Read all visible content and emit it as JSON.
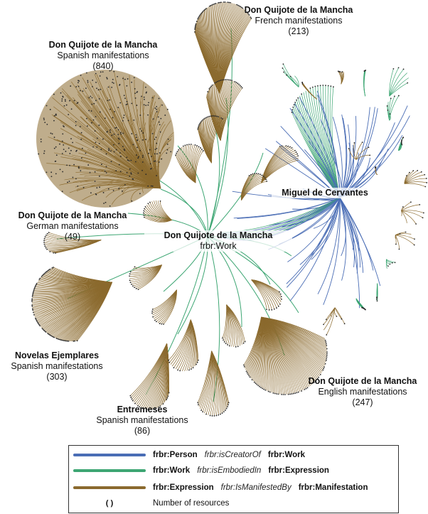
{
  "colors": {
    "creator": "#4a6db5",
    "embodied": "#3da673",
    "manifested": "#8b6a2e",
    "node": "#2a2a2a"
  },
  "clusters": {
    "spanish_quijote": {
      "title": "Don Quijote de la Mancha",
      "subtitle": "Spanish manifestations",
      "count": "(840)"
    },
    "french_quijote": {
      "title": "Don Quijote de la Mancha",
      "subtitle": "French manifestations",
      "count": "(213)"
    },
    "german_quijote": {
      "title": "Don Quijote de la Mancha",
      "subtitle": "German manifestations",
      "count": "(49)"
    },
    "work": {
      "title": "Don Quijote de la Mancha",
      "subtitle": "frbr:Work"
    },
    "person": {
      "title": "Miguel de Cervantes"
    },
    "novelas": {
      "title": "Novelas Ejemplares",
      "subtitle": "Spanish manifestations",
      "count": "(303)"
    },
    "entremeses": {
      "title": "Entremeses",
      "subtitle": "Spanish manifestations",
      "count": "(86)"
    },
    "english_quijote": {
      "title": "Don Quijote de la Mancha",
      "subtitle": "English manifestations",
      "count": "(247)"
    }
  },
  "legend": {
    "rows": [
      {
        "color_key": "creator",
        "subject": "frbr:Person",
        "predicate": "frbr:isCreatorOf",
        "object": "frbr:Work"
      },
      {
        "color_key": "embodied",
        "subject": "frbr:Work",
        "predicate": "frbr:isEmbodiedIn",
        "object": "frbr:Expression"
      },
      {
        "color_key": "manifested",
        "subject": "frbr:Expression",
        "predicate": "frbr:IsManifestedBy",
        "object": "frbr:Manifestation"
      }
    ],
    "parens_symbol": "()",
    "parens_text": "Number of resources"
  }
}
